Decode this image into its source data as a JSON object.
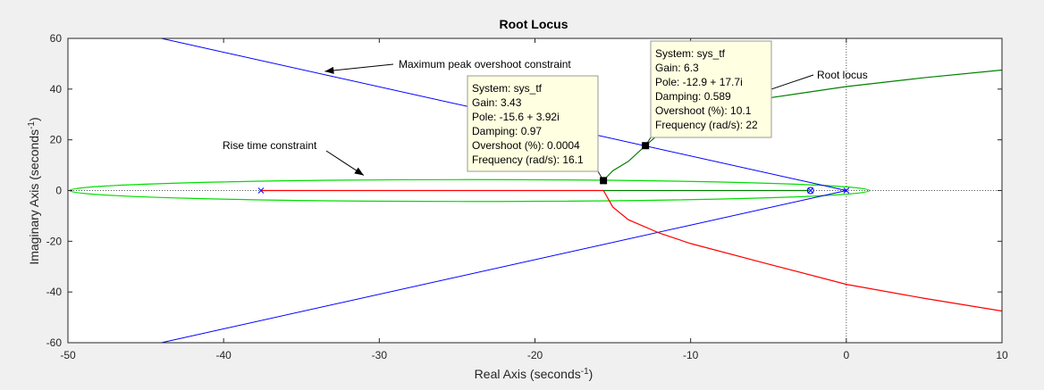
{
  "chart_data": {
    "type": "line",
    "title": "Root Locus",
    "xlabel": "Real Axis (seconds",
    "xlabel_sup": "-1",
    "xlabel_end": ")",
    "ylabel": "Imaginary Axis (seconds",
    "ylabel_sup": "-1",
    "ylabel_end": ")",
    "xlim": [
      -50,
      10
    ],
    "ylim": [
      -60,
      60
    ],
    "xticks": [
      -50,
      -40,
      -30,
      -20,
      -10,
      0,
      10
    ],
    "yticks": [
      -60,
      -40,
      -20,
      0,
      20,
      40,
      60
    ],
    "grid": false,
    "colors": {
      "locus_red": "#ff0000",
      "locus_green": "#008000",
      "overshoot_constraint": "#0000ff",
      "rise_time_constraint": "#00dd00",
      "datatip_bg": "#ffffe1",
      "background": "#ffffff"
    },
    "series": [
      {
        "name": "Root locus",
        "color": "#ff0000",
        "x": [
          -37.6,
          -15.6,
          -15.0,
          -14.0,
          -12.0,
          -10.0,
          -5.0,
          0.0,
          5.0,
          10.0
        ],
        "y": [
          0,
          0,
          -6.5,
          -11.5,
          -16.8,
          -20.9,
          -29.0,
          -37.0,
          -42.5,
          -47.5
        ]
      },
      {
        "color": "#008000",
        "x": [
          -2.4,
          -15.6
        ],
        "y": [
          0,
          0
        ]
      },
      {
        "color": "#008000",
        "x": [
          -15.6,
          -15.0,
          -14.0,
          -12.9,
          -12.0,
          -10.0,
          -5.0,
          0.0,
          5.0,
          10.0
        ],
        "y": [
          4,
          7.8,
          11.5,
          17.7,
          22.5,
          28.5,
          36.5,
          41.0,
          44.5,
          47.5
        ]
      }
    ],
    "constraints": {
      "overshoot_lines": [
        {
          "x": [
            -44,
            0
          ],
          "y": [
            60,
            0
          ]
        },
        {
          "x": [
            -44,
            0
          ],
          "y": [
            -60,
            0
          ]
        }
      ],
      "rise_time_ellipse": {
        "center": [
          -24.2,
          0
        ],
        "semi_axis_x": 25.7,
        "semi_axis_y": 4.3
      }
    },
    "poles": [
      {
        "x": -37.6,
        "y": 0
      },
      {
        "x": 0,
        "y": 0
      },
      {
        "x": -2.3,
        "y": 0
      }
    ],
    "zeros": [
      {
        "x": -2.3,
        "y": 0
      }
    ],
    "datatips": [
      {
        "x": -15.6,
        "y": 3.92,
        "lines": [
          "System: sys_tf",
          "Gain: 3.43",
          "Pole: -15.6 + 3.92i",
          "Damping: 0.97",
          "Overshoot (%): 0.0004",
          "Frequency (rad/s): 16.1"
        ]
      },
      {
        "x": -12.9,
        "y": 17.7,
        "lines": [
          "System: sys_tf",
          "Gain: 6.3",
          "Pole: -12.9 + 17.7i",
          "Damping: 0.589",
          "Overshoot (%): 10.1",
          "Frequency (rad/s): 22"
        ]
      }
    ],
    "annotations": [
      {
        "text": "Maximum peak overshoot constraint",
        "arrow_to": [
          -33.5,
          47
        ]
      },
      {
        "text": "Rise time constraint",
        "arrow_to": [
          -31,
          6
        ]
      },
      {
        "text": "Root locus",
        "arrow_to": [
          -6,
          37.5
        ]
      }
    ]
  }
}
